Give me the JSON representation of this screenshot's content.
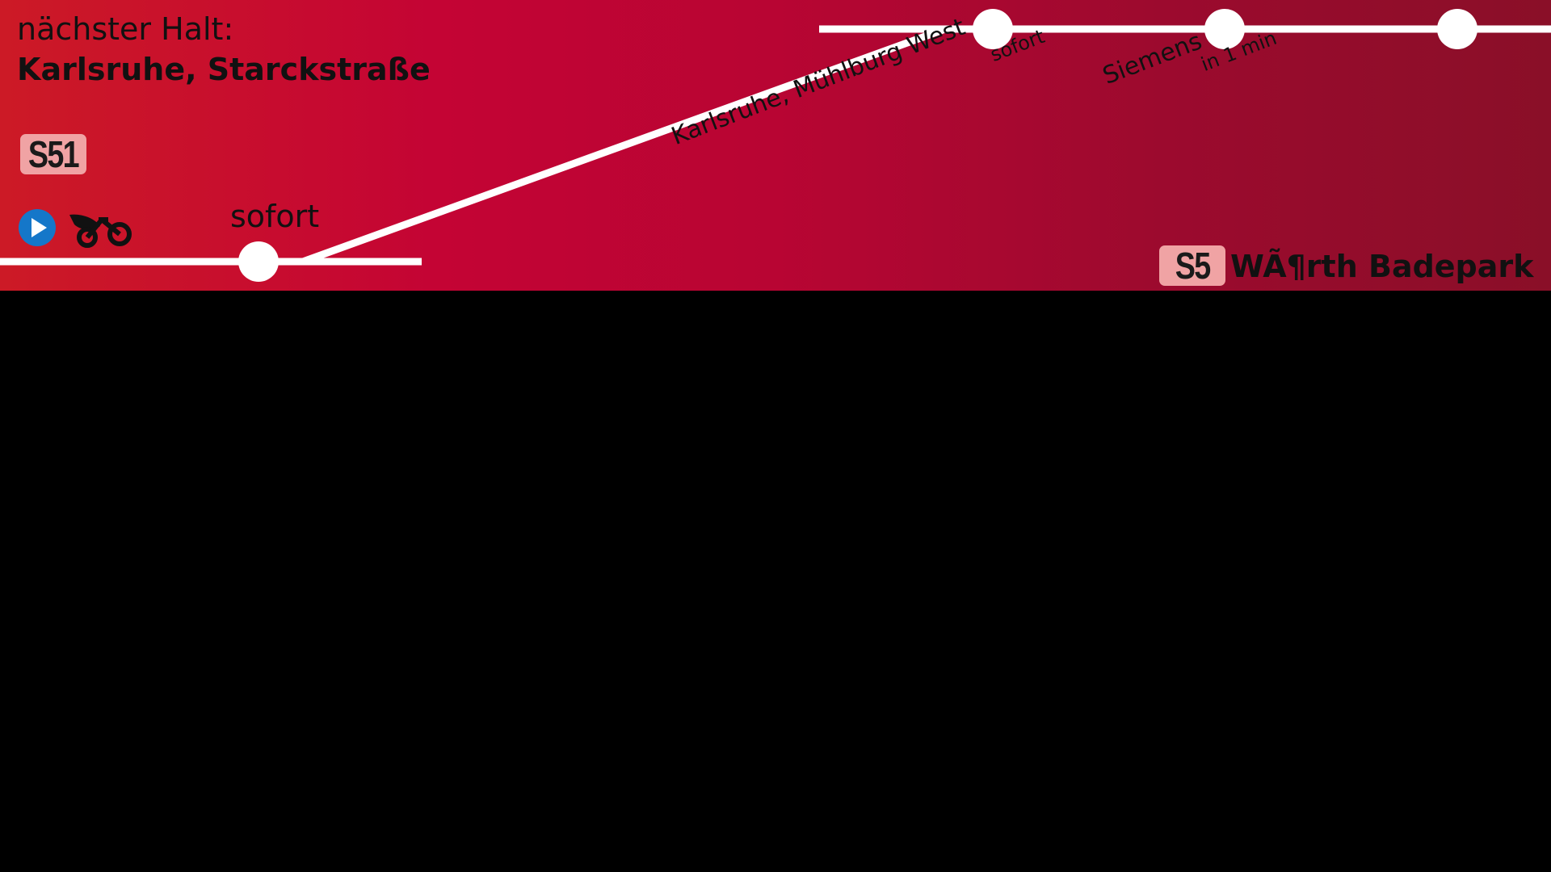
{
  "header": {
    "next_stop_label": "nächster Halt:",
    "next_stop_name": "Karlsruhe, Starckstraße"
  },
  "current": {
    "line": "S51",
    "eta": "sofort"
  },
  "service_icons": [
    "play-icon",
    "bike-icon"
  ],
  "stops": [
    {
      "name": "Karlsruhe, Mühlburg West",
      "eta": "sofort"
    },
    {
      "name": "Siemens",
      "eta": "in 1 min"
    }
  ],
  "destination": {
    "line": "S5",
    "name": "WÃ¶rth Badepark"
  },
  "colors": {
    "banner_left": "#cc1a26",
    "banner_right": "#8a0f28",
    "track": "#ffffff",
    "badge": "#f0a3a4",
    "play_icon": "#1577c9",
    "screen_background": "#000000"
  }
}
